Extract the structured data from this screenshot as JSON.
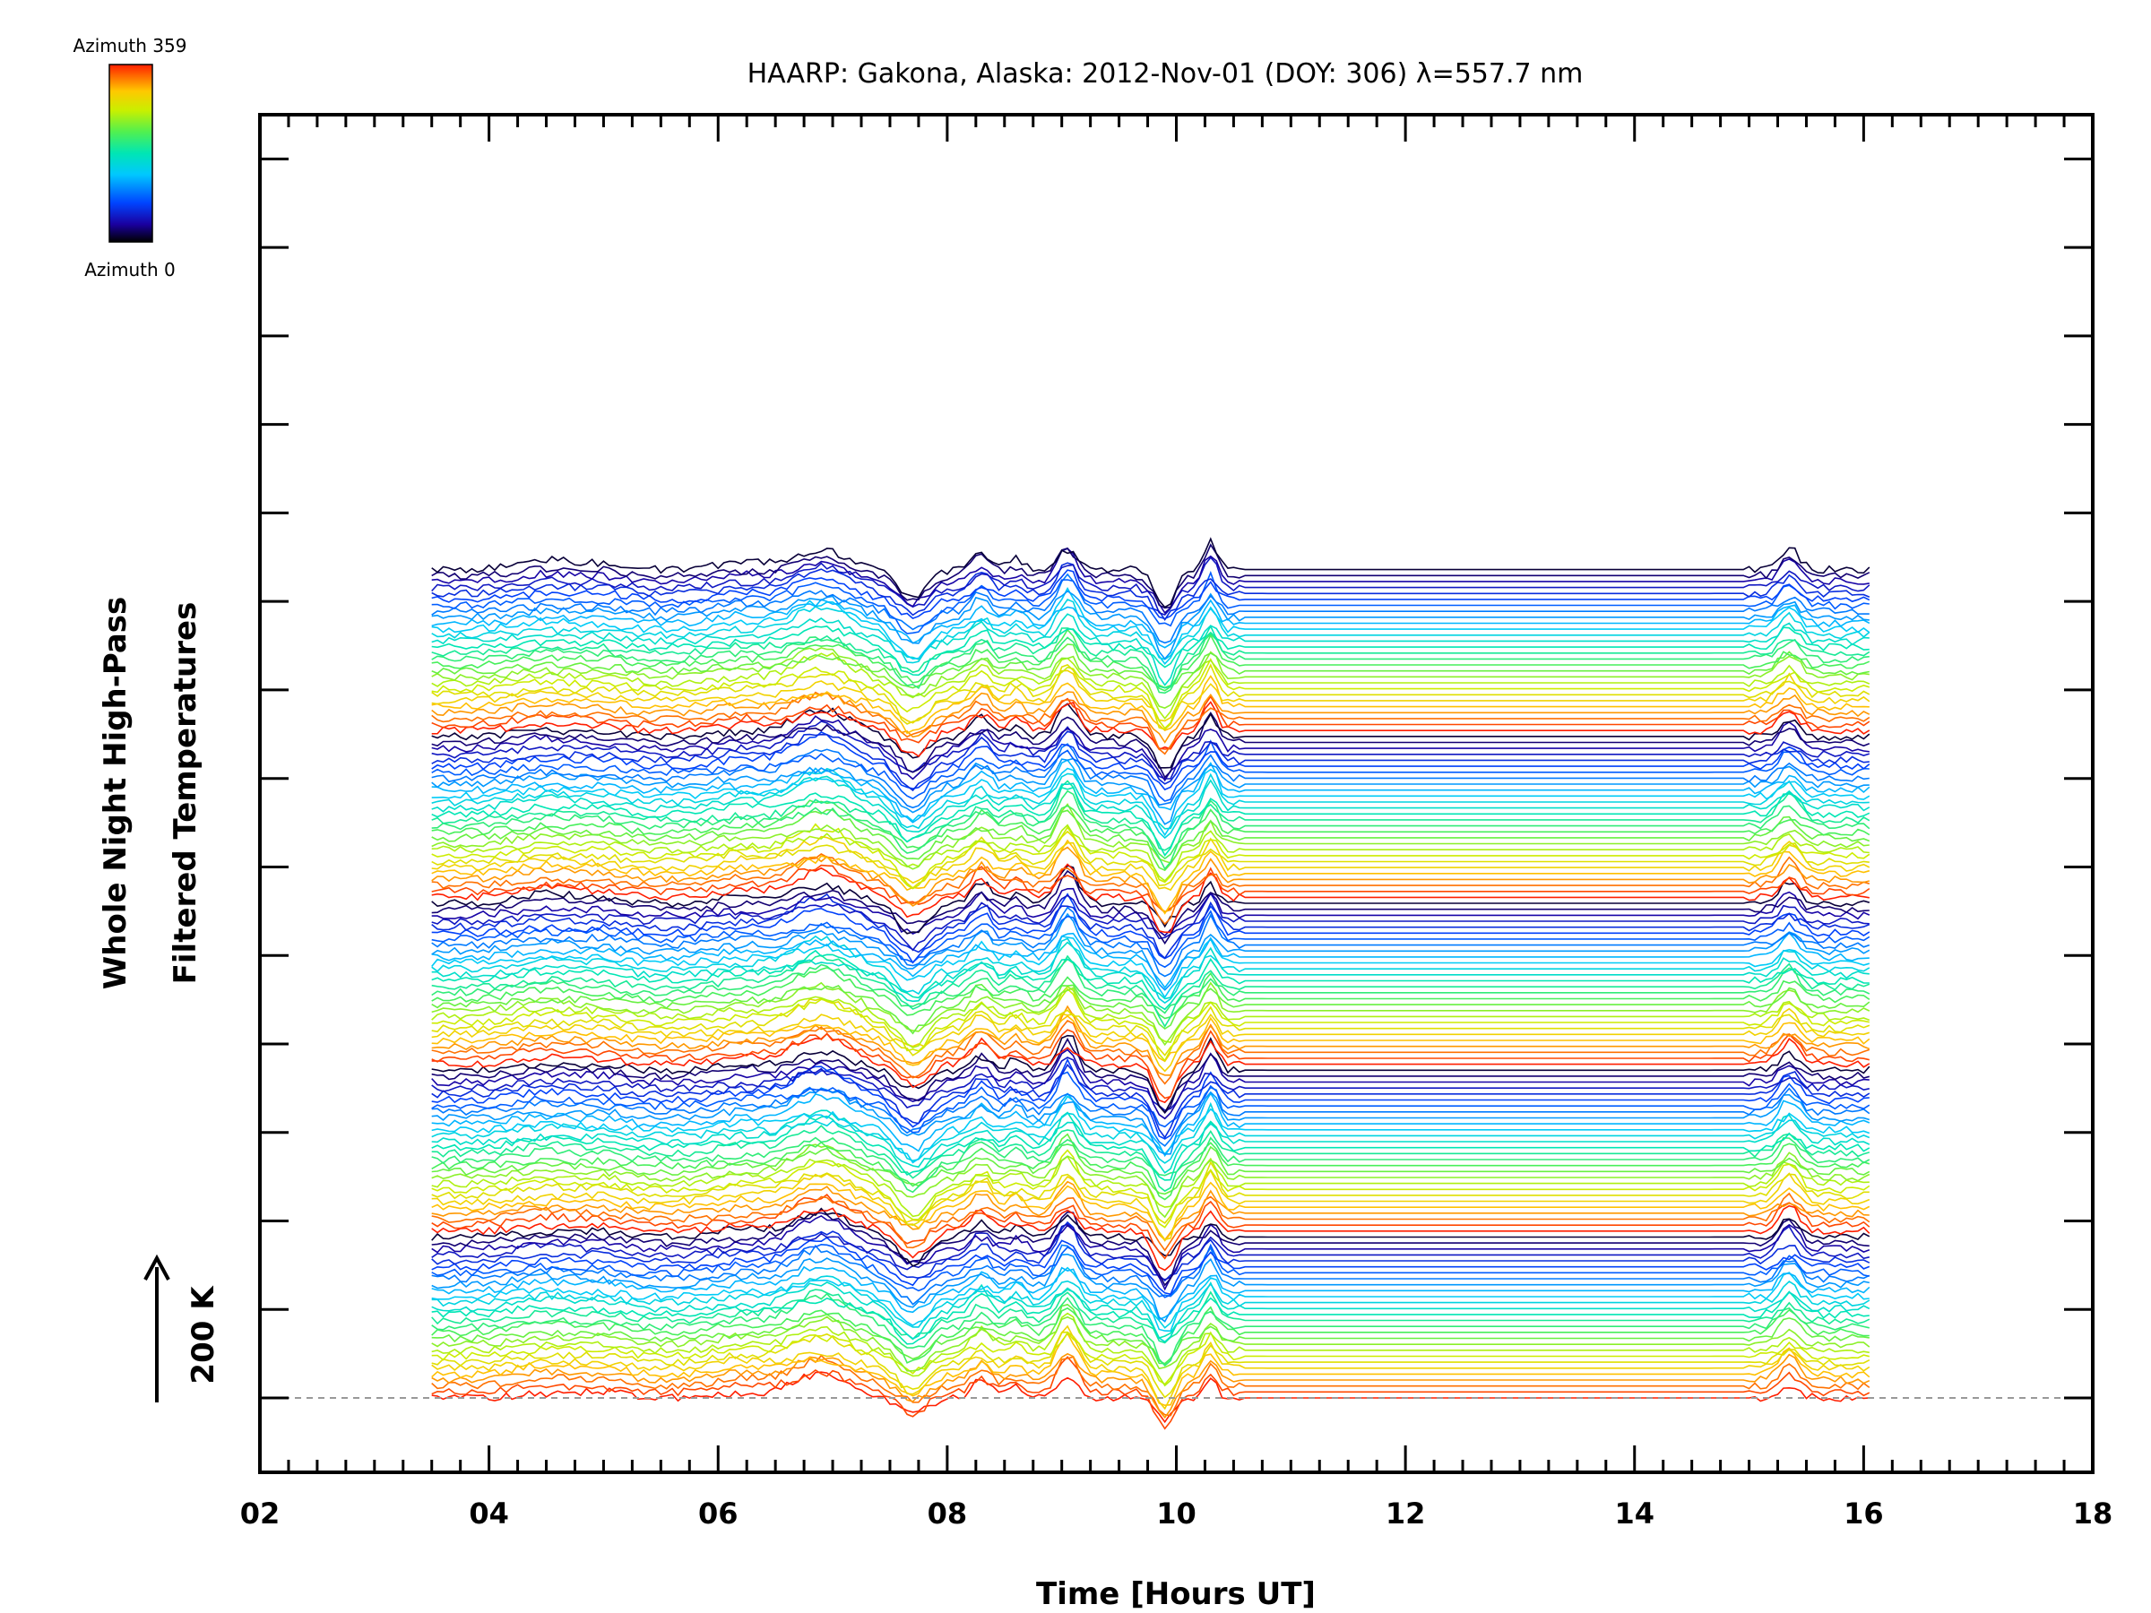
{
  "chart_data": {
    "type": "line",
    "title": "HAARP: Gakona,  Alaska: 2012-Nov-01 (DOY: 306) λ=557.7 nm",
    "xlabel": "Time [Hours UT]",
    "ylabel_line1": "Whole Night High-Pass",
    "ylabel_line2": "Filtered Temperatures",
    "scale_label": "200 K",
    "xlim": [
      2,
      18
    ],
    "x_ticks": [
      "02",
      "04",
      "06",
      "08",
      "10",
      "12",
      "14",
      "16",
      "18"
    ],
    "x_tick_values": [
      2,
      4,
      6,
      8,
      10,
      12,
      14,
      16,
      18
    ],
    "data_start_hour": 3.5,
    "data_end_hour": 16.05,
    "n_traces": 140,
    "azimuth_range": [
      0,
      359
    ],
    "colorbar": {
      "label_max": "Azimuth 359",
      "label_min": "Azimuth 0",
      "colors": [
        "#000000",
        "#1a00a0",
        "#0044ff",
        "#00c8ff",
        "#00e6b4",
        "#50f050",
        "#c8f000",
        "#ffc800",
        "#ff6400",
        "#ff1e00"
      ]
    },
    "baseline_style": "dashed gray",
    "grid": false,
    "legend": "colorbar top-left"
  }
}
